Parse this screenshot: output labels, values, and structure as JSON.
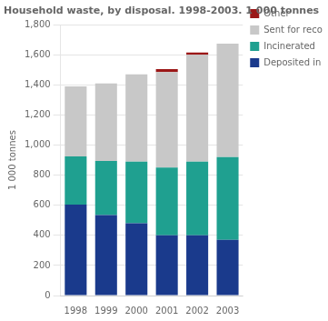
{
  "chart_data": {
    "type": "bar",
    "title": "Household waste, by disposal. 1998-2003. 1 000 tonnes",
    "ylabel": "1 000 tonnes",
    "categories": [
      "1998",
      "1999",
      "2000",
      "2001",
      "2002",
      "2003"
    ],
    "series": [
      {
        "name": "Deposited in landfills",
        "color": "#1a3a8c",
        "values": [
          605,
          535,
          480,
          400,
          400,
          370
        ]
      },
      {
        "name": "Incinerated",
        "color": "#1fa090",
        "values": [
          320,
          360,
          410,
          450,
          490,
          550
        ]
      },
      {
        "name": "Sent for recovery",
        "color": "#c8c8c8",
        "values": [
          465,
          515,
          580,
          635,
          710,
          755
        ]
      },
      {
        "name": "Other",
        "color": "#9b1717",
        "values": [
          0,
          0,
          0,
          20,
          15,
          0
        ]
      }
    ],
    "stacked": true,
    "ylim": [
      0,
      1800
    ],
    "yticks": [
      0,
      200,
      400,
      600,
      800,
      1000,
      1200,
      1400,
      1600,
      1800
    ],
    "grid": true,
    "legend": "right"
  }
}
